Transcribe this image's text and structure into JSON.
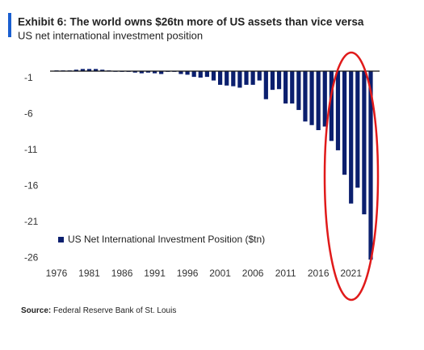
{
  "chart_data": {
    "type": "bar",
    "title": "Exhibit 6: The world owns $26tn more of US assets than vice versa",
    "subtitle": "US net international investment position",
    "source_label": "Source:",
    "source": "Federal Reserve Bank of St. Louis",
    "x": [
      1976,
      1977,
      1978,
      1979,
      1980,
      1981,
      1982,
      1983,
      1984,
      1985,
      1986,
      1987,
      1988,
      1989,
      1990,
      1991,
      1992,
      1993,
      1994,
      1995,
      1996,
      1997,
      1998,
      1999,
      2000,
      2001,
      2002,
      2003,
      2004,
      2005,
      2006,
      2007,
      2008,
      2009,
      2010,
      2011,
      2012,
      2013,
      2014,
      2015,
      2016,
      2017,
      2018,
      2019,
      2020,
      2021,
      2022,
      2023,
      2024
    ],
    "series": [
      {
        "name": "US Net International Investment Position ($tn)",
        "color": "#0b1f6e",
        "values": [
          0.1,
          0.1,
          0.1,
          0.2,
          0.3,
          0.3,
          0.3,
          0.2,
          0.1,
          0.0,
          -0.1,
          -0.1,
          -0.2,
          -0.3,
          -0.2,
          -0.3,
          -0.4,
          -0.1,
          -0.1,
          -0.4,
          -0.5,
          -0.8,
          -0.9,
          -0.8,
          -1.3,
          -1.9,
          -2.0,
          -2.1,
          -2.3,
          -1.9,
          -1.9,
          -1.3,
          -3.9,
          -2.6,
          -2.5,
          -4.5,
          -4.5,
          -5.4,
          -7.0,
          -7.5,
          -8.2,
          -7.7,
          -9.7,
          -11.0,
          -14.4,
          -18.4,
          -16.2,
          -19.9,
          -26.2
        ]
      }
    ],
    "xlim": [
      1976,
      2024
    ],
    "xticks": [
      1976,
      1981,
      1986,
      1991,
      1996,
      2001,
      2006,
      2011,
      2016,
      2021
    ],
    "ylim": [
      -26.5,
      0
    ],
    "yticks": [
      -1,
      -6,
      -11,
      -16,
      -21,
      -26
    ],
    "grid": false,
    "legend": "lower left"
  }
}
